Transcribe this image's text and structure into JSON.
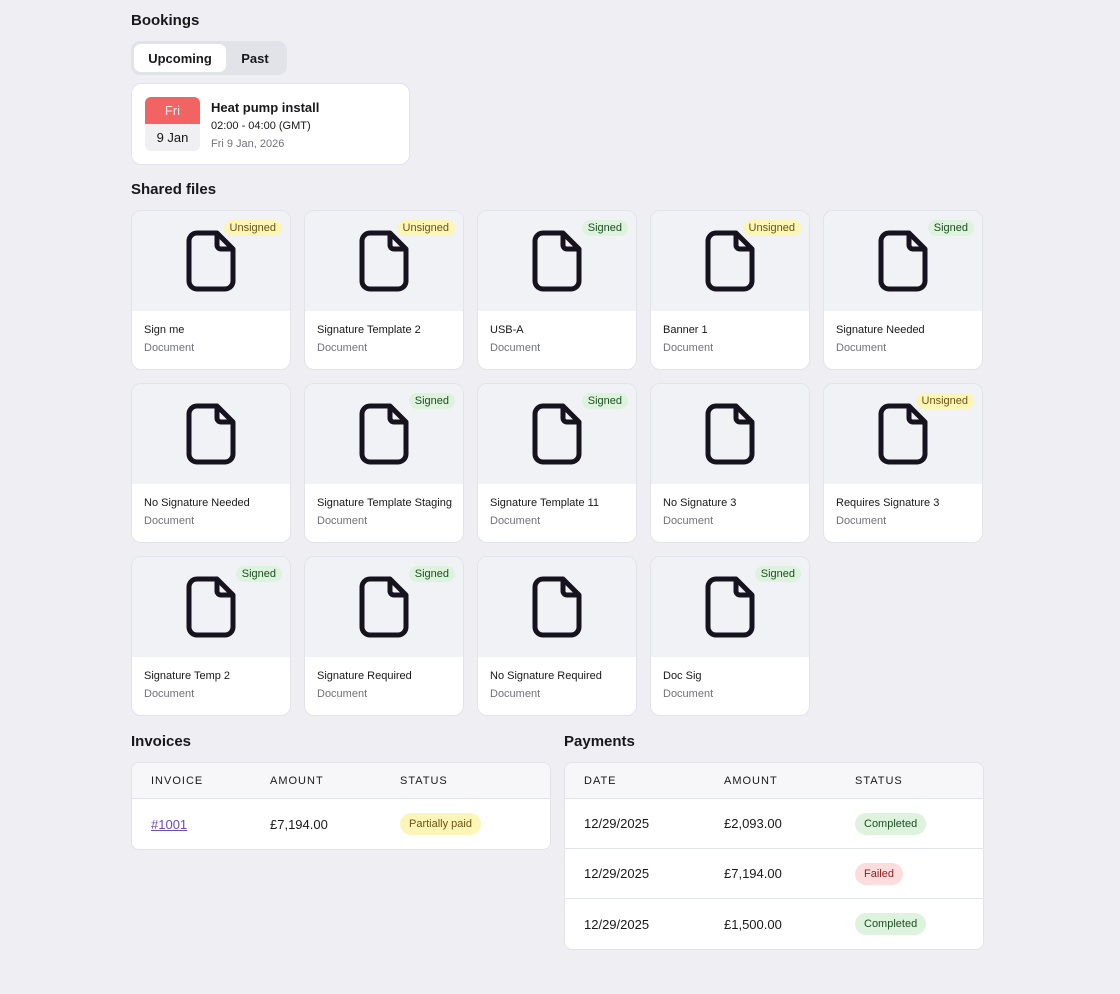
{
  "bookings": {
    "title": "Bookings",
    "tabs": [
      "Upcoming",
      "Past"
    ],
    "active_tab": "Upcoming",
    "item": {
      "day": "Fri",
      "date": "9 Jan",
      "title": "Heat pump install",
      "time": "02:00 - 04:00 (GMT)",
      "full_date": "Fri 9 Jan, 2026"
    }
  },
  "shared_files": {
    "title": "Shared files",
    "files": [
      {
        "name": "Sign me",
        "type": "Document",
        "status": "Unsigned"
      },
      {
        "name": "Signature Template 2",
        "type": "Document",
        "status": "Unsigned"
      },
      {
        "name": "USB-A",
        "type": "Document",
        "status": "Signed"
      },
      {
        "name": "Banner 1",
        "type": "Document",
        "status": "Unsigned"
      },
      {
        "name": "Signature Needed",
        "type": "Document",
        "status": "Signed"
      },
      {
        "name": "No Signature Needed",
        "type": "Document",
        "status": ""
      },
      {
        "name": "Signature Template Staging",
        "type": "Document",
        "status": "Signed"
      },
      {
        "name": "Signature Template 11",
        "type": "Document",
        "status": "Signed"
      },
      {
        "name": "No Signature 3",
        "type": "Document",
        "status": ""
      },
      {
        "name": "Requires Signature 3",
        "type": "Document",
        "status": "Unsigned"
      },
      {
        "name": "Signature Temp 2",
        "type": "Document",
        "status": "Signed"
      },
      {
        "name": "Signature Required",
        "type": "Document",
        "status": "Signed"
      },
      {
        "name": "No Signature Required",
        "type": "Document",
        "status": ""
      },
      {
        "name": "Doc Sig",
        "type": "Document",
        "status": "Signed"
      }
    ]
  },
  "invoices": {
    "title": "Invoices",
    "columns": [
      "INVOICE",
      "AMOUNT",
      "STATUS"
    ],
    "rows": [
      {
        "invoice": "#1001",
        "amount": "£7,194.00",
        "status": "Partially paid",
        "tone": "y"
      }
    ]
  },
  "payments": {
    "title": "Payments",
    "columns": [
      "DATE",
      "AMOUNT",
      "STATUS"
    ],
    "rows": [
      {
        "date": "12/29/2025",
        "amount": "£2,093.00",
        "status": "Completed",
        "tone": "g"
      },
      {
        "date": "12/29/2025",
        "amount": "£7,194.00",
        "status": "Failed",
        "tone": "r"
      },
      {
        "date": "12/29/2025",
        "amount": "£1,500.00",
        "status": "Completed",
        "tone": "g"
      }
    ]
  },
  "colors": {
    "date_header": "#f26464",
    "unsigned": "#fcf5b8",
    "signed": "#ddf3dd",
    "failed": "#fcdcdc",
    "link": "#6d4bb4"
  }
}
